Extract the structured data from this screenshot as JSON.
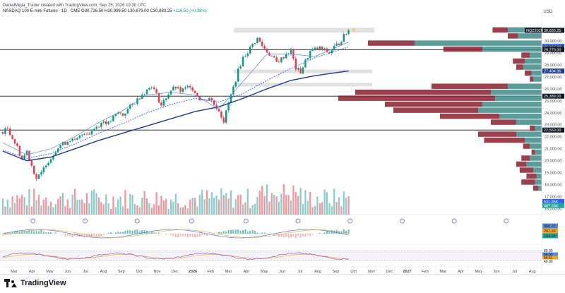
{
  "header": {
    "byline": "DanielMejia_Trader created with TradingView.com, Sep 25, 2026 19:30 UTC",
    "symbol": "NASDAQ 100 E-mini Futures · 1D · CME",
    "ohlc": "O30,726.50 H30,999.50 L30,679.00 C30,883.25",
    "change": "+116.50 (+0.38%)",
    "currency": "USD"
  },
  "footer": {
    "brand": "TradingView"
  },
  "colors": {
    "up": "#089981",
    "down": "#f23645",
    "teal": "#3d8c8a",
    "maroon": "#8c1e2e",
    "ma_dark": "#1e3a8a",
    "ma_light": "#5b8ad6",
    "band": "#c9c9c9"
  },
  "chart_data": {
    "type": "line",
    "title": "",
    "ylim": [
      15500,
      32000
    ],
    "y_ticks": [
      "30,000.00",
      "29,000.00",
      "28,000.00",
      "27,000.00",
      "26,000.00",
      "25,000.00",
      "24,000.00",
      "23,000.00",
      "22,000.00",
      "21,000.00",
      "20,000.00",
      "19,000.00",
      "18,000.00",
      "17,000.00",
      "16,000.00"
    ],
    "x_ticks": [
      "Mar",
      "Apr",
      "May",
      "Jun",
      "Jul",
      "Aug",
      "Sep",
      "Oct",
      "Nov",
      "Dec",
      "2026",
      "Feb",
      "Mar",
      "Apr",
      "May",
      "Jun",
      "Jul",
      "Aug",
      "Sep",
      "Oct",
      "Nov",
      "Dec",
      "2027",
      "Feb",
      "Mar",
      "Apr",
      "May",
      "Jun",
      "Jul",
      "Aug"
    ],
    "price_path": [
      [
        0,
        22400
      ],
      [
        2,
        22700
      ],
      [
        4,
        21900
      ],
      [
        6,
        21100
      ],
      [
        8,
        20100
      ],
      [
        10,
        20800
      ],
      [
        12,
        19600
      ],
      [
        14,
        18500
      ],
      [
        16,
        18900
      ],
      [
        18,
        19800
      ],
      [
        20,
        20200
      ],
      [
        22,
        20900
      ],
      [
        24,
        21300
      ],
      [
        26,
        21500
      ],
      [
        28,
        21800
      ],
      [
        30,
        21600
      ],
      [
        32,
        22000
      ],
      [
        34,
        22400
      ],
      [
        36,
        22300
      ],
      [
        38,
        22700
      ],
      [
        40,
        23000
      ],
      [
        42,
        23300
      ],
      [
        44,
        23100
      ],
      [
        46,
        23600
      ],
      [
        48,
        24000
      ],
      [
        50,
        23800
      ],
      [
        52,
        24300
      ],
      [
        54,
        24700
      ],
      [
        56,
        25100
      ],
      [
        58,
        25600
      ],
      [
        60,
        25900
      ],
      [
        62,
        26300
      ],
      [
        64,
        25500
      ],
      [
        66,
        24600
      ],
      [
        68,
        25300
      ],
      [
        70,
        25900
      ],
      [
        72,
        26100
      ],
      [
        74,
        25800
      ],
      [
        76,
        26000
      ],
      [
        78,
        26300
      ],
      [
        80,
        25700
      ],
      [
        82,
        25200
      ],
      [
        84,
        25000
      ],
      [
        86,
        25300
      ],
      [
        88,
        24700
      ],
      [
        90,
        24200
      ],
      [
        92,
        23300
      ],
      [
        94,
        24800
      ],
      [
        96,
        26100
      ],
      [
        98,
        27500
      ],
      [
        100,
        28600
      ],
      [
        102,
        29100
      ],
      [
        104,
        29700
      ],
      [
        106,
        30200
      ],
      [
        108,
        29600
      ],
      [
        110,
        29100
      ],
      [
        112,
        28700
      ],
      [
        114,
        28200
      ],
      [
        116,
        28500
      ],
      [
        118,
        28900
      ],
      [
        120,
        29200
      ],
      [
        122,
        27700
      ],
      [
        124,
        27400
      ],
      [
        126,
        28300
      ],
      [
        128,
        29100
      ],
      [
        130,
        29300
      ],
      [
        132,
        29400
      ],
      [
        134,
        29200
      ],
      [
        136,
        29000
      ],
      [
        138,
        29500
      ],
      [
        140,
        29800
      ],
      [
        142,
        30400
      ],
      [
        144,
        30880
      ]
    ],
    "ma_slow": [
      [
        0,
        20800
      ],
      [
        10,
        20000
      ],
      [
        20,
        20300
      ],
      [
        30,
        21000
      ],
      [
        40,
        21700
      ],
      [
        50,
        22300
      ],
      [
        60,
        22900
      ],
      [
        70,
        23500
      ],
      [
        80,
        24100
      ],
      [
        90,
        24500
      ],
      [
        100,
        25200
      ],
      [
        110,
        26000
      ],
      [
        120,
        26700
      ],
      [
        130,
        27100
      ],
      [
        144,
        27500
      ]
    ],
    "ma_mid": [
      [
        0,
        20900
      ],
      [
        10,
        20200
      ],
      [
        20,
        20600
      ],
      [
        30,
        21400
      ],
      [
        40,
        22300
      ],
      [
        50,
        23100
      ],
      [
        60,
        24000
      ],
      [
        70,
        24700
      ],
      [
        80,
        25200
      ],
      [
        90,
        24900
      ],
      [
        100,
        25600
      ],
      [
        110,
        26700
      ],
      [
        120,
        27700
      ],
      [
        130,
        28600
      ],
      [
        144,
        29500
      ]
    ],
    "ma_fast": [
      [
        0,
        21500
      ],
      [
        10,
        20500
      ],
      [
        20,
        21000
      ],
      [
        30,
        22000
      ],
      [
        40,
        23200
      ],
      [
        50,
        24200
      ],
      [
        60,
        25500
      ],
      [
        70,
        25700
      ],
      [
        80,
        25500
      ],
      [
        90,
        24300
      ],
      [
        100,
        26600
      ],
      [
        110,
        28900
      ],
      [
        120,
        28900
      ],
      [
        130,
        28700
      ],
      [
        144,
        29900
      ]
    ],
    "levels": [
      {
        "price": 30883.25,
        "label": "30,883.25",
        "tag": "NQZ2026"
      },
      {
        "price": 29557.94,
        "label": "29,557.94"
      },
      {
        "price": 29419.38,
        "label": "29,419.38"
      },
      {
        "price": 29270.0,
        "label": "29,270.00"
      },
      {
        "price": 27484.96,
        "label": "27,484.96"
      },
      {
        "price": 25389.0,
        "label": "25,389.00"
      },
      {
        "price": 22560.0,
        "label": "22,560.00"
      },
      {
        "price": 16600.0,
        "label": "531.85K"
      },
      {
        "price": 16250.0,
        "label": "487.58K"
      }
    ],
    "zones": [
      {
        "from": 30700,
        "to": 31100
      },
      {
        "from": 27300,
        "to": 27600
      },
      {
        "from": 26200,
        "to": 26500
      }
    ],
    "volume_profile": [
      {
        "price": 30900,
        "up": 40,
        "down": 18
      },
      {
        "price": 30400,
        "up": 28,
        "down": 12
      },
      {
        "price": 29800,
        "up": 150,
        "down": 55
      },
      {
        "price": 29300,
        "up": 70,
        "down": 46
      },
      {
        "price": 28800,
        "up": 14,
        "down": 10
      },
      {
        "price": 28300,
        "up": 20,
        "down": 14
      },
      {
        "price": 27800,
        "up": 22,
        "down": 8
      },
      {
        "price": 27300,
        "up": 12,
        "down": 8
      },
      {
        "price": 26800,
        "up": 10,
        "down": 4
      },
      {
        "price": 26200,
        "up": 40,
        "down": 90
      },
      {
        "price": 25700,
        "up": 60,
        "down": 160
      },
      {
        "price": 25200,
        "up": 55,
        "down": 185
      },
      {
        "price": 24700,
        "up": 70,
        "down": 115
      },
      {
        "price": 24200,
        "up": 75,
        "down": 100
      },
      {
        "price": 23700,
        "up": 50,
        "down": 70
      },
      {
        "price": 23200,
        "up": 30,
        "down": 30
      },
      {
        "price": 22700,
        "up": 8,
        "down": 6
      },
      {
        "price": 22200,
        "up": 30,
        "down": 45
      },
      {
        "price": 21700,
        "up": 20,
        "down": 48
      },
      {
        "price": 21200,
        "up": 14,
        "down": 8
      },
      {
        "price": 20700,
        "up": 8,
        "down": 4
      },
      {
        "price": 20200,
        "up": 14,
        "down": 10
      },
      {
        "price": 19700,
        "up": 18,
        "down": 12
      },
      {
        "price": 19200,
        "up": 10,
        "down": 16
      },
      {
        "price": 18700,
        "up": 6,
        "down": 12
      },
      {
        "price": 18200,
        "up": 8,
        "down": 16
      },
      {
        "price": 17700,
        "up": 4,
        "down": 6
      }
    ],
    "macd_values": [
      {
        "label": "366.27",
        "color": "#5b8ad6"
      },
      {
        "label": "201.62",
        "color": "#f5a623"
      },
      {
        "label": "164.65",
        "color": "#26a69a"
      }
    ],
    "rsi_values": [
      {
        "label": "80.00",
        "color": "#ffffff"
      },
      {
        "label": "66.80",
        "color": "#5b8ad6"
      },
      {
        "label": "56.51",
        "color": "#f5a623"
      },
      {
        "label": "40.00",
        "color": "#ffffff"
      }
    ],
    "rsi_band": [
      40,
      80
    ],
    "event_markers": 10
  }
}
